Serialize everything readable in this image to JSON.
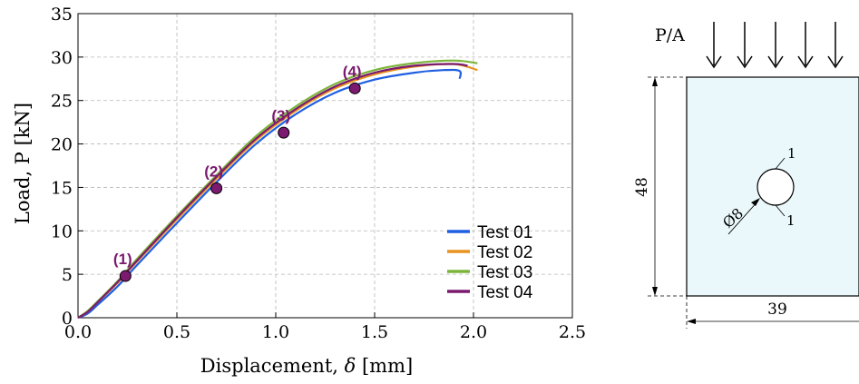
{
  "chart_data": {
    "type": "line",
    "xlabel_prefix": "Displacement, ",
    "xlabel_symbol": "δ",
    "xlabel_suffix": " [mm]",
    "ylabel": "Load, P [kN]",
    "xlim": [
      0,
      2.5
    ],
    "ylim": [
      0,
      35
    ],
    "xticks": [
      0.0,
      0.5,
      1.0,
      1.5,
      2.0,
      2.5
    ],
    "xtick_labels": [
      "0.0",
      "0.5",
      "1.0",
      "1.5",
      "2.0",
      "2.5"
    ],
    "yticks": [
      0,
      5,
      10,
      15,
      20,
      25,
      30,
      35
    ],
    "ytick_labels": [
      "0",
      "5",
      "10",
      "15",
      "20",
      "25",
      "30",
      "35"
    ],
    "grid": true,
    "legend_position": "bottom-right",
    "series": [
      {
        "name": "Test 01",
        "color": "#1f5fe0",
        "x": [
          0,
          0.05,
          0.1,
          0.2,
          0.3,
          0.5,
          0.7,
          0.9,
          1.1,
          1.3,
          1.5,
          1.7,
          1.85,
          1.93,
          1.93
        ],
        "y": [
          0,
          0.5,
          1.5,
          3.6,
          6.1,
          10.9,
          15.6,
          20.0,
          23.4,
          25.9,
          27.4,
          28.2,
          28.5,
          28.4,
          27.5
        ]
      },
      {
        "name": "Test 02",
        "color": "#e8931f",
        "x": [
          0,
          0.05,
          0.1,
          0.2,
          0.3,
          0.5,
          0.7,
          0.9,
          1.1,
          1.3,
          1.5,
          1.7,
          1.9,
          2.02
        ],
        "y": [
          0,
          0.7,
          1.8,
          4.0,
          6.5,
          11.3,
          16.0,
          20.4,
          23.8,
          26.4,
          28.0,
          28.9,
          29.2,
          28.5
        ]
      },
      {
        "name": "Test 03",
        "color": "#7cb53a",
        "x": [
          0,
          0.05,
          0.1,
          0.2,
          0.3,
          0.5,
          0.7,
          0.9,
          1.1,
          1.3,
          1.5,
          1.7,
          1.9,
          2.02
        ],
        "y": [
          0,
          0.8,
          1.9,
          4.2,
          6.8,
          11.7,
          16.4,
          20.9,
          24.3,
          26.9,
          28.5,
          29.3,
          29.6,
          29.3
        ]
      },
      {
        "name": "Test 04",
        "color": "#7b1a6e",
        "x": [
          0,
          0.05,
          0.1,
          0.2,
          0.3,
          0.5,
          0.7,
          0.9,
          1.1,
          1.3,
          1.5,
          1.7,
          1.9,
          1.97
        ],
        "y": [
          0,
          0.7,
          1.8,
          4.1,
          6.6,
          11.5,
          16.2,
          20.6,
          24.0,
          26.6,
          28.2,
          29.0,
          29.2,
          29.0
        ]
      }
    ],
    "markers": [
      {
        "label": "(1)",
        "x": 0.24,
        "y": 4.8
      },
      {
        "label": "(2)",
        "x": 0.7,
        "y": 14.9
      },
      {
        "label": "(3)",
        "x": 1.04,
        "y": 21.3
      },
      {
        "label": "(4)",
        "x": 1.4,
        "y": 26.4
      }
    ],
    "marker_color": "#7b1a6e"
  },
  "specimen": {
    "load_label": "P/A",
    "height_label": "48",
    "width_label": "39",
    "hole_label": "Ø8",
    "notch_top_label": "1",
    "notch_bottom_label": "1",
    "fill_color": "#eaf8fb"
  }
}
